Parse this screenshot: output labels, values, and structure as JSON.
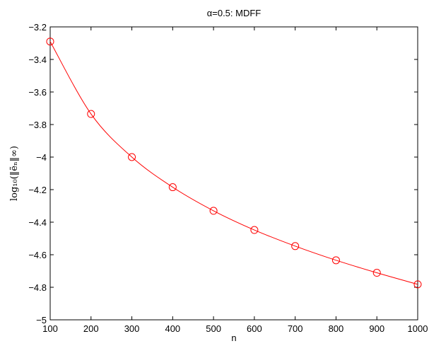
{
  "chart_data": {
    "type": "line",
    "title": "α=0.5: MDFF",
    "xlabel": "n",
    "ylabel": "log₁₀(‖ẽₙ‖∞)",
    "x": [
      100,
      200,
      300,
      400,
      500,
      600,
      700,
      800,
      900,
      1000
    ],
    "xlim": [
      100,
      1000
    ],
    "ylim": [
      -5,
      -3.2
    ],
    "xticks": [
      100,
      200,
      300,
      400,
      500,
      600,
      700,
      800,
      900,
      1000
    ],
    "yticks": [
      -5,
      -4.8,
      -4.6,
      -4.4,
      -4.2,
      -4,
      -3.8,
      -3.6,
      -3.4,
      -3.2
    ],
    "xtick_labels": [
      "100",
      "200",
      "300",
      "400",
      "500",
      "600",
      "700",
      "800",
      "900",
      "1000"
    ],
    "ytick_labels": [
      "−5",
      "−4.8",
      "−4.6",
      "−4.4",
      "−4.2",
      "−4",
      "−3.8",
      "−3.6",
      "−3.4",
      "−3.2"
    ],
    "grid": false,
    "series": [
      {
        "color": "#ff0000",
        "marker": "circle",
        "values": [
          -3.29,
          -3.735,
          -4.0,
          -4.185,
          -4.33,
          -4.448,
          -4.547,
          -4.634,
          -4.711,
          -4.782
        ]
      }
    ]
  }
}
